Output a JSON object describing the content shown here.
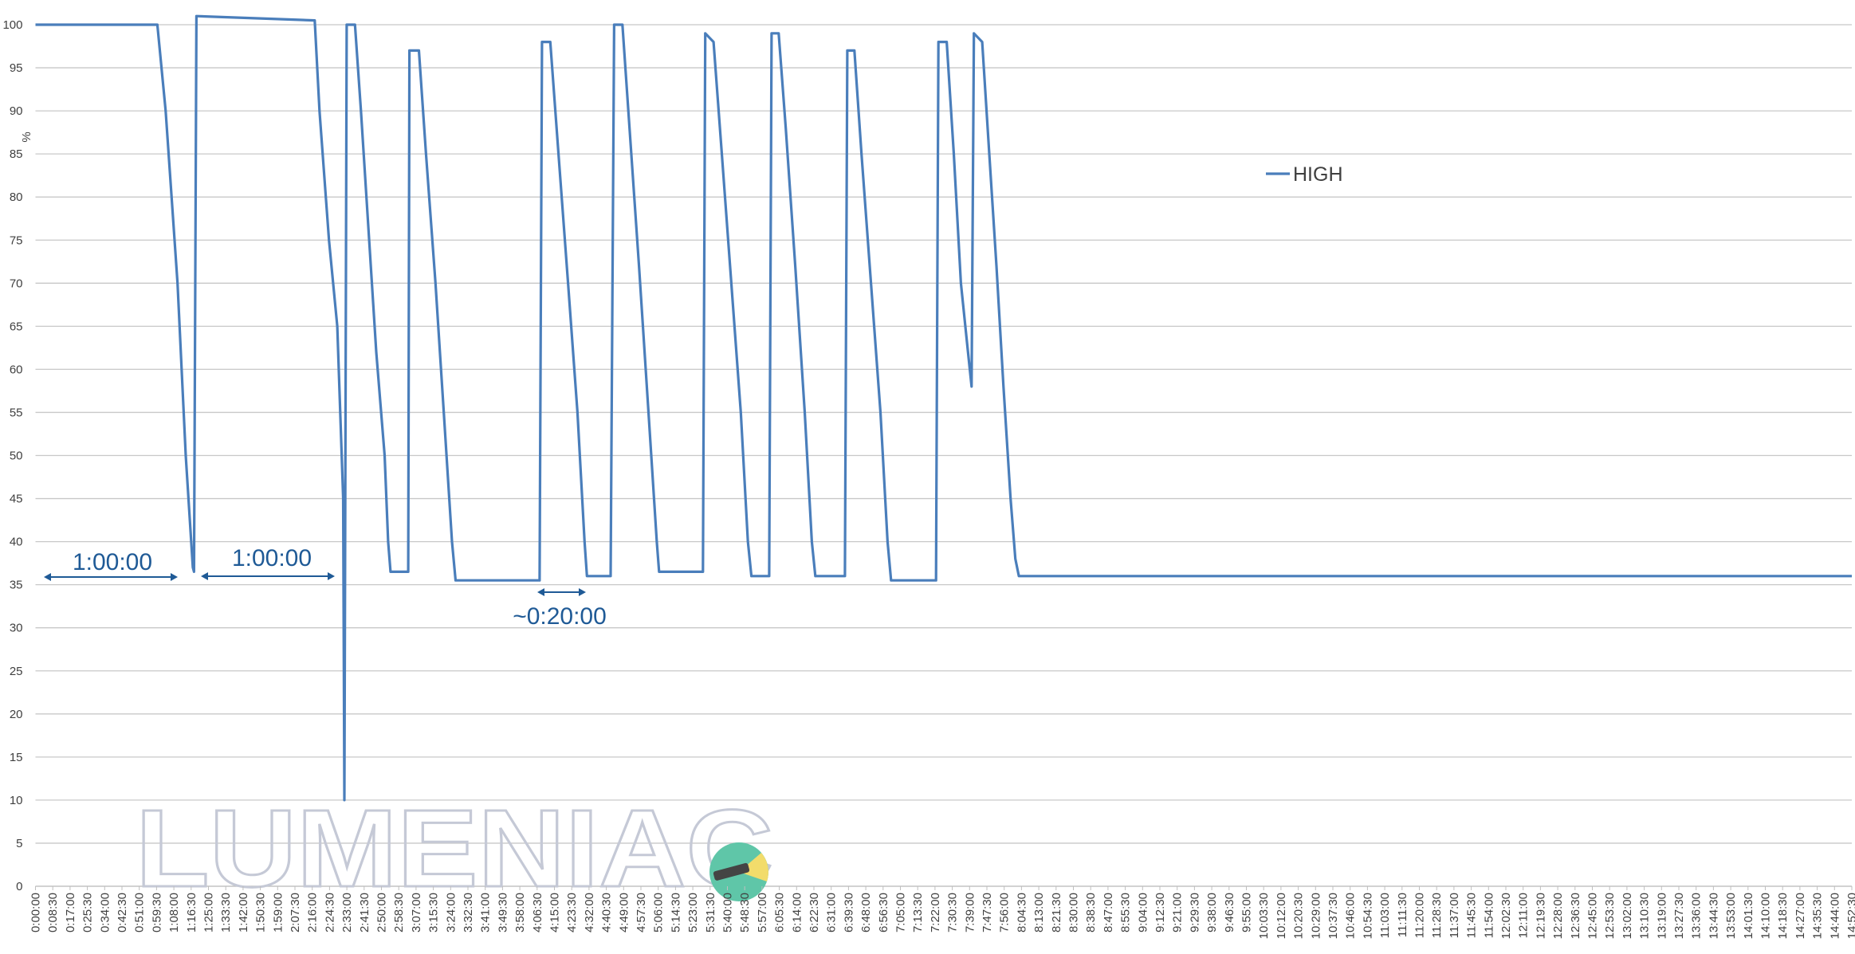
{
  "chart_data": {
    "type": "line",
    "y_label": "%",
    "watermark": "LUMENIAC",
    "annotations": [
      "1:00:00",
      "1:00:00",
      "~0:20:00"
    ],
    "legend": "right-top",
    "grid": true,
    "ylim": [
      0,
      100
    ],
    "yticks": [
      0,
      5,
      10,
      15,
      20,
      25,
      30,
      35,
      40,
      45,
      50,
      55,
      60,
      65,
      70,
      75,
      80,
      85,
      90,
      95,
      100
    ],
    "xlim": [
      0,
      53550
    ],
    "xticks": [
      {
        "value": 0,
        "label": "0:00:00"
      },
      {
        "value": 510,
        "label": "0:08:30"
      },
      {
        "value": 1020,
        "label": "0:17:00"
      },
      {
        "value": 1530,
        "label": "0:25:30"
      },
      {
        "value": 2040,
        "label": "0:34:00"
      },
      {
        "value": 2550,
        "label": "0:42:30"
      },
      {
        "value": 3060,
        "label": "0:51:00"
      },
      {
        "value": 3570,
        "label": "0:59:30"
      },
      {
        "value": 4080,
        "label": "1:08:00"
      },
      {
        "value": 4590,
        "label": "1:16:30"
      },
      {
        "value": 5100,
        "label": "1:25:00"
      },
      {
        "value": 5610,
        "label": "1:33:30"
      },
      {
        "value": 6120,
        "label": "1:42:00"
      },
      {
        "value": 6630,
        "label": "1:50:30"
      },
      {
        "value": 7140,
        "label": "1:59:00"
      },
      {
        "value": 7650,
        "label": "2:07:30"
      },
      {
        "value": 8160,
        "label": "2:16:00"
      },
      {
        "value": 8670,
        "label": "2:24:30"
      },
      {
        "value": 9180,
        "label": "2:33:00"
      },
      {
        "value": 9690,
        "label": "2:41:30"
      },
      {
        "value": 10200,
        "label": "2:50:00"
      },
      {
        "value": 10710,
        "label": "2:58:30"
      },
      {
        "value": 11220,
        "label": "3:07:00"
      },
      {
        "value": 11730,
        "label": "3:15:30"
      },
      {
        "value": 12240,
        "label": "3:24:00"
      },
      {
        "value": 12750,
        "label": "3:32:30"
      },
      {
        "value": 13260,
        "label": "3:41:00"
      },
      {
        "value": 13770,
        "label": "3:49:30"
      },
      {
        "value": 14280,
        "label": "3:58:00"
      },
      {
        "value": 14790,
        "label": "4:06:30"
      },
      {
        "value": 15300,
        "label": "4:15:00"
      },
      {
        "value": 15810,
        "label": "4:23:30"
      },
      {
        "value": 16320,
        "label": "4:32:00"
      },
      {
        "value": 16830,
        "label": "4:40:30"
      },
      {
        "value": 17340,
        "label": "4:49:00"
      },
      {
        "value": 17850,
        "label": "4:57:30"
      },
      {
        "value": 18360,
        "label": "5:06:00"
      },
      {
        "value": 18870,
        "label": "5:14:30"
      },
      {
        "value": 19380,
        "label": "5:23:00"
      },
      {
        "value": 19890,
        "label": "5:31:30"
      },
      {
        "value": 20400,
        "label": "5:40:00"
      },
      {
        "value": 20910,
        "label": "5:48:30"
      },
      {
        "value": 21420,
        "label": "5:57:00"
      },
      {
        "value": 21930,
        "label": "6:05:30"
      },
      {
        "value": 22440,
        "label": "6:14:00"
      },
      {
        "value": 22950,
        "label": "6:22:30"
      },
      {
        "value": 23460,
        "label": "6:31:00"
      },
      {
        "value": 23970,
        "label": "6:39:30"
      },
      {
        "value": 24480,
        "label": "6:48:00"
      },
      {
        "value": 24990,
        "label": "6:56:30"
      },
      {
        "value": 25500,
        "label": "7:05:00"
      },
      {
        "value": 26010,
        "label": "7:13:30"
      },
      {
        "value": 26520,
        "label": "7:22:00"
      },
      {
        "value": 27030,
        "label": "7:30:30"
      },
      {
        "value": 27540,
        "label": "7:39:00"
      },
      {
        "value": 28050,
        "label": "7:47:30"
      },
      {
        "value": 28560,
        "label": "7:56:00"
      },
      {
        "value": 29070,
        "label": "8:04:30"
      },
      {
        "value": 29580,
        "label": "8:13:00"
      },
      {
        "value": 30090,
        "label": "8:21:30"
      },
      {
        "value": 30600,
        "label": "8:30:00"
      },
      {
        "value": 31110,
        "label": "8:38:30"
      },
      {
        "value": 31620,
        "label": "8:47:00"
      },
      {
        "value": 32130,
        "label": "8:55:30"
      },
      {
        "value": 32640,
        "label": "9:04:00"
      },
      {
        "value": 33150,
        "label": "9:12:30"
      },
      {
        "value": 33660,
        "label": "9:21:00"
      },
      {
        "value": 34170,
        "label": "9:29:30"
      },
      {
        "value": 34680,
        "label": "9:38:00"
      },
      {
        "value": 35190,
        "label": "9:46:30"
      },
      {
        "value": 35700,
        "label": "9:55:00"
      },
      {
        "value": 36210,
        "label": "10:03:30"
      },
      {
        "value": 36720,
        "label": "10:12:00"
      },
      {
        "value": 37230,
        "label": "10:20:30"
      },
      {
        "value": 37740,
        "label": "10:29:00"
      },
      {
        "value": 38250,
        "label": "10:37:30"
      },
      {
        "value": 38760,
        "label": "10:46:00"
      },
      {
        "value": 39270,
        "label": "10:54:30"
      },
      {
        "value": 39780,
        "label": "11:03:00"
      },
      {
        "value": 40290,
        "label": "11:11:30"
      },
      {
        "value": 40800,
        "label": "11:20:00"
      },
      {
        "value": 41310,
        "label": "11:28:30"
      },
      {
        "value": 41820,
        "label": "11:37:00"
      },
      {
        "value": 42330,
        "label": "11:45:30"
      },
      {
        "value": 42840,
        "label": "11:54:00"
      },
      {
        "value": 43350,
        "label": "12:02:30"
      },
      {
        "value": 43860,
        "label": "12:11:00"
      },
      {
        "value": 44370,
        "label": "12:19:30"
      },
      {
        "value": 44880,
        "label": "12:28:00"
      },
      {
        "value": 45390,
        "label": "12:36:30"
      },
      {
        "value": 45900,
        "label": "12:45:00"
      },
      {
        "value": 46410,
        "label": "12:53:30"
      },
      {
        "value": 46920,
        "label": "13:02:00"
      },
      {
        "value": 47430,
        "label": "13:10:30"
      },
      {
        "value": 47940,
        "label": "13:19:00"
      },
      {
        "value": 48450,
        "label": "13:27:30"
      },
      {
        "value": 48960,
        "label": "13:36:00"
      },
      {
        "value": 49470,
        "label": "13:44:30"
      },
      {
        "value": 49980,
        "label": "13:53:00"
      },
      {
        "value": 50490,
        "label": "14:01:30"
      },
      {
        "value": 51000,
        "label": "14:10:00"
      },
      {
        "value": 51510,
        "label": "14:18:30"
      },
      {
        "value": 52020,
        "label": "14:27:00"
      },
      {
        "value": 52530,
        "label": "14:35:30"
      },
      {
        "value": 53040,
        "label": "14:44:00"
      },
      {
        "value": 53550,
        "label": "14:52:30"
      }
    ],
    "x": [
      0,
      3594,
      3838,
      4187,
      4431,
      4640,
      4675,
      4745,
      8234,
      8374,
      8653,
      8897,
      9071,
      9106,
      9176,
      9420,
      9595,
      9839,
      10048,
      10293,
      10397,
      10467,
      10990,
      11025,
      11304,
      11514,
      11793,
      12037,
      12281,
      12386,
      14863,
      14933,
      15177,
      15421,
      15701,
      15980,
      16189,
      16259,
      16957,
      17061,
      17305,
      17515,
      17794,
      18073,
      18317,
      18387,
      19678,
      19747,
      19992,
      20236,
      20515,
      20794,
      21004,
      21108,
      21632,
      21702,
      21911,
      22120,
      22399,
      22679,
      22888,
      22993,
      23865,
      23935,
      24144,
      24353,
      24632,
      24912,
      25121,
      25226,
      26551,
      26621,
      26865,
      27075,
      27284,
      27493,
      27598,
      27668,
      27912,
      28121,
      28331,
      28540,
      28749,
      28889,
      28993,
      53550
    ],
    "series": [
      {
        "name": "HIGH",
        "color": "#4a7ebb",
        "values": [
          100,
          100,
          90,
          70,
          50,
          37,
          36.5,
          101,
          100.5,
          90,
          75,
          65,
          45,
          10,
          100,
          100,
          90,
          75,
          62,
          50,
          40,
          36.5,
          36.5,
          97,
          97,
          85,
          70,
          55,
          40,
          35.5,
          35.5,
          98,
          98,
          85,
          70,
          55,
          40,
          36,
          36,
          100,
          100,
          88,
          72,
          55,
          40,
          36.5,
          36.5,
          99,
          98,
          85,
          70,
          55,
          40,
          36,
          36,
          99,
          99,
          88,
          72,
          55,
          40,
          36,
          36,
          97,
          97,
          85,
          70,
          55,
          40,
          35.5,
          35.5,
          98,
          98,
          85,
          70,
          62,
          58,
          99,
          98,
          85,
          72,
          58,
          45,
          38,
          36,
          36
        ]
      }
    ]
  }
}
